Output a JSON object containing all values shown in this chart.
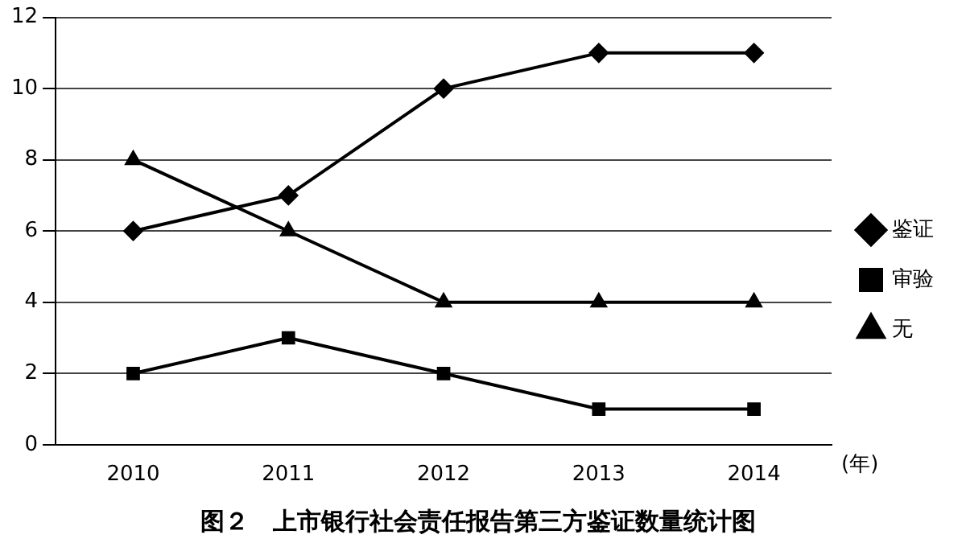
{
  "chart_data": {
    "type": "line",
    "title": "图２　上市银行社会责任报告第三方鉴证数量统计图",
    "xlabel": "(年)",
    "categories": [
      "2010",
      "2011",
      "2012",
      "2013",
      "2014"
    ],
    "series": [
      {
        "name": "鉴证",
        "color": "#000000",
        "marker": "diamond",
        "values": [
          6,
          7,
          10,
          11,
          11
        ]
      },
      {
        "name": "审验",
        "color": "#000000",
        "marker": "square",
        "values": [
          2,
          3,
          2,
          1,
          1
        ]
      },
      {
        "name": "无",
        "color": "#000000",
        "marker": "triangle",
        "values": [
          8,
          6,
          4,
          4,
          4
        ]
      }
    ],
    "ylim": [
      0,
      12
    ],
    "yticks": [
      0,
      2,
      4,
      6,
      8,
      10,
      12
    ],
    "grid": "y",
    "legend": "right",
    "line_style": "solid"
  }
}
